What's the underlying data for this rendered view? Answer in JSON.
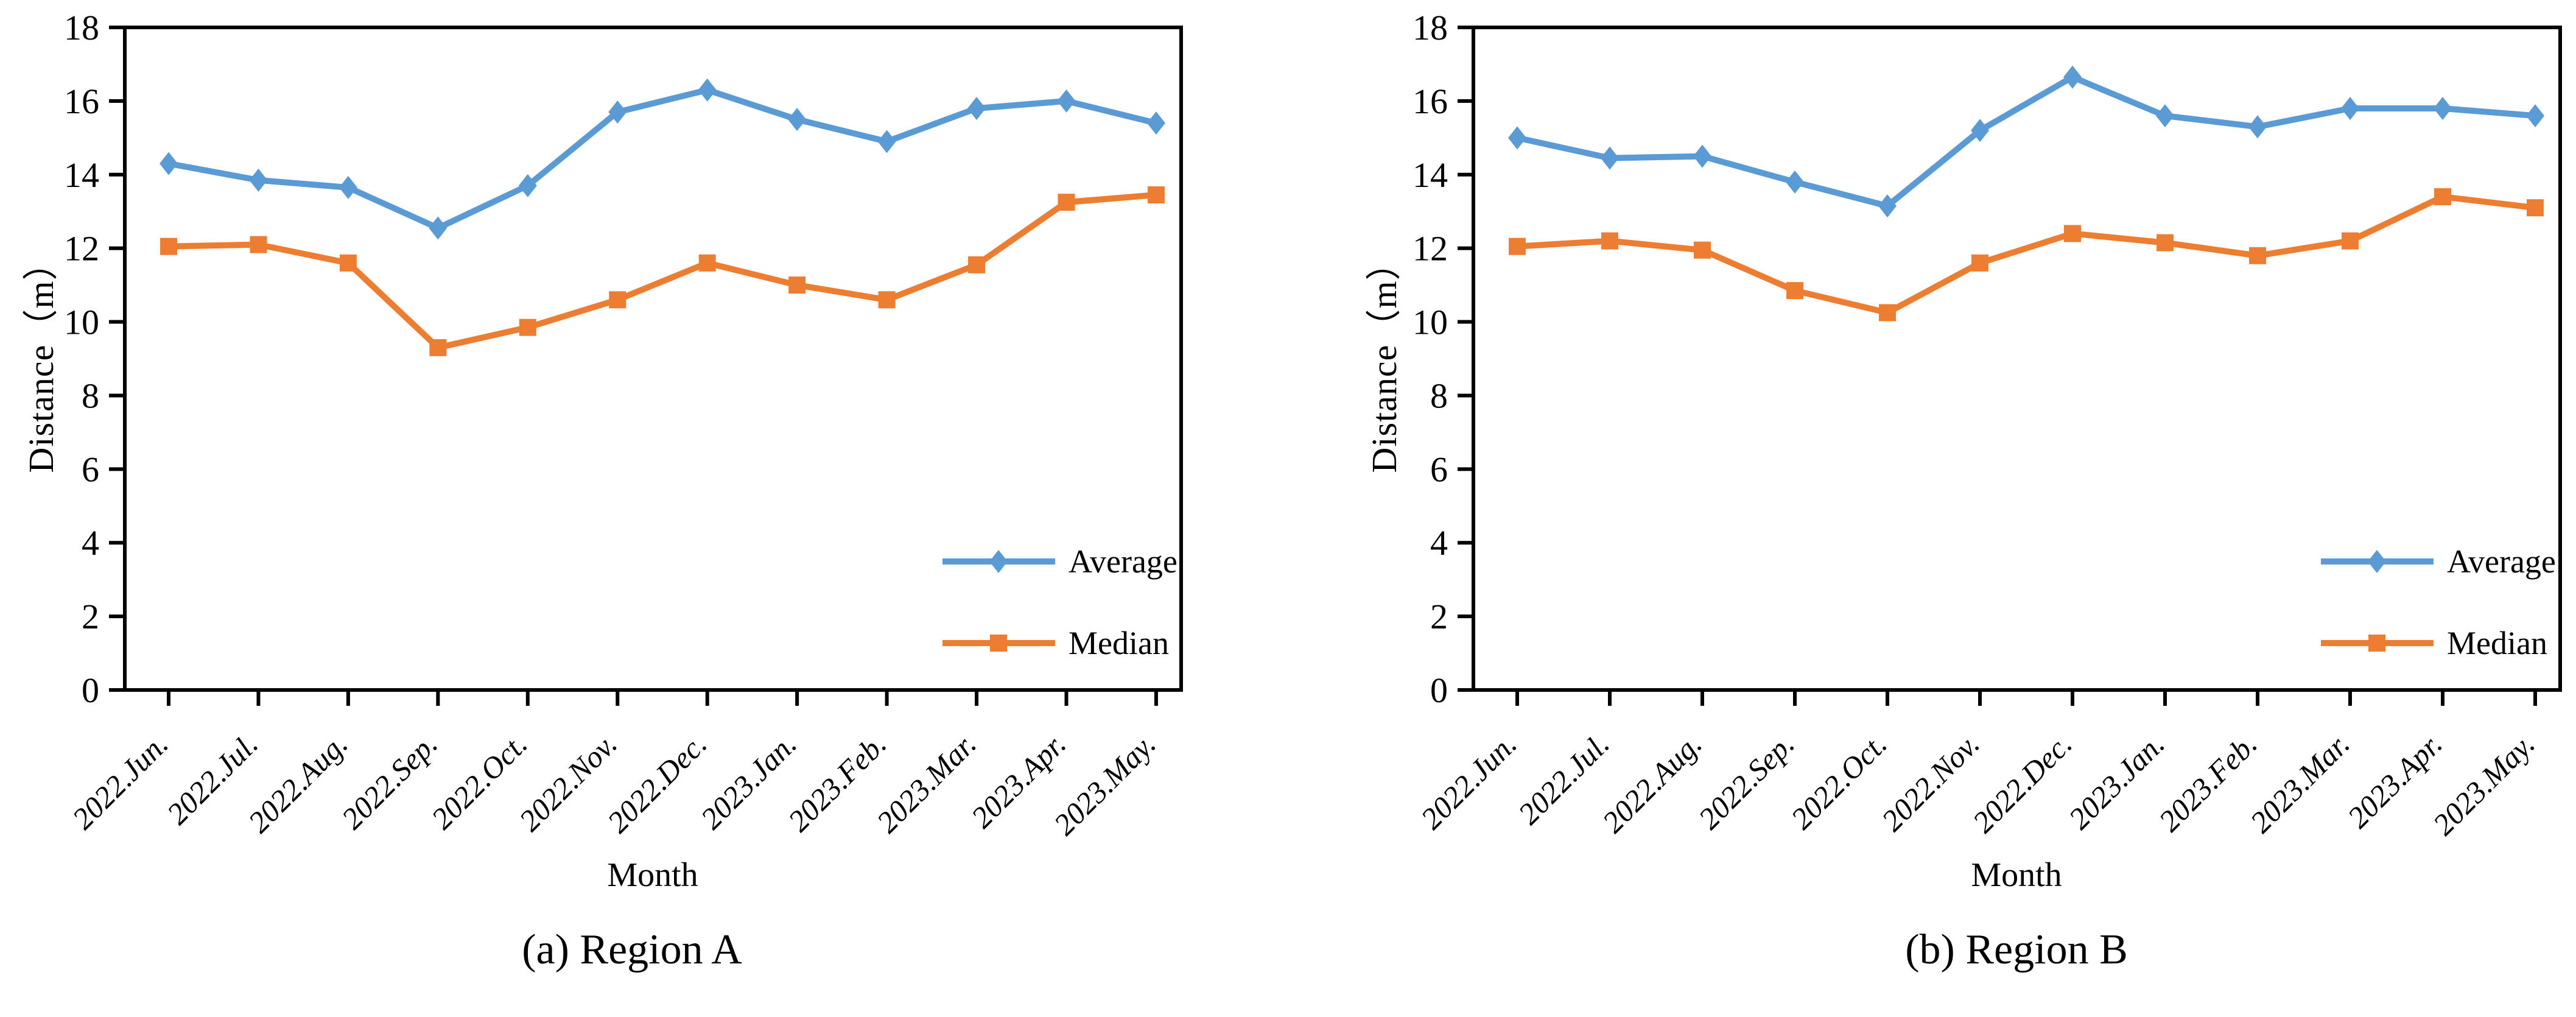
{
  "page": {
    "background": "#ffffff"
  },
  "colors": {
    "average": "#5B9BD5",
    "median": "#ED7D31",
    "axis": "#000000"
  },
  "chart_data": [
    {
      "type": "line",
      "caption": "(a) Region A",
      "xlabel": "Month",
      "ylabel": "Distance（m）",
      "ylim": [
        0,
        18
      ],
      "ytick_step": 2,
      "grid": false,
      "legend_position": "lower right",
      "categories": [
        "2022.Jun.",
        "2022.Jul.",
        "2022.Aug.",
        "2022.Sep.",
        "2022.Oct.",
        "2022.Nov.",
        "2022.Dec.",
        "2023.Jan.",
        "2023.Feb.",
        "2023.Mar.",
        "2023.Apr.",
        "2023.May."
      ],
      "series": [
        {
          "name": "Average",
          "marker": "diamond",
          "color": "#5B9BD5",
          "values": [
            14.3,
            13.85,
            13.65,
            12.55,
            13.7,
            15.7,
            16.3,
            15.5,
            14.9,
            15.8,
            16.0,
            15.4
          ]
        },
        {
          "name": "Median",
          "marker": "square",
          "color": "#ED7D31",
          "values": [
            12.05,
            12.1,
            11.6,
            9.3,
            9.85,
            10.6,
            11.6,
            11.0,
            10.6,
            11.55,
            13.25,
            13.45
          ]
        }
      ]
    },
    {
      "type": "line",
      "caption": "(b) Region B",
      "xlabel": "Month",
      "ylabel": "Distance（m）",
      "ylim": [
        0,
        18
      ],
      "ytick_step": 2,
      "grid": false,
      "legend_position": "lower right",
      "categories": [
        "2022.Jun.",
        "2022.Jul.",
        "2022.Aug.",
        "2022.Sep.",
        "2022.Oct.",
        "2022.Nov.",
        "2022.Dec.",
        "2023.Jan.",
        "2023.Feb.",
        "2023.Mar.",
        "2023.Apr.",
        "2023.May."
      ],
      "series": [
        {
          "name": "Average",
          "marker": "diamond",
          "color": "#5B9BD5",
          "values": [
            15.0,
            14.45,
            14.5,
            13.8,
            13.15,
            15.2,
            16.65,
            15.6,
            15.3,
            15.8,
            15.8,
            15.6
          ]
        },
        {
          "name": "Median",
          "marker": "square",
          "color": "#ED7D31",
          "values": [
            12.05,
            12.2,
            11.95,
            10.85,
            10.25,
            11.6,
            12.4,
            12.15,
            11.8,
            12.2,
            13.4,
            13.1
          ]
        }
      ]
    }
  ]
}
